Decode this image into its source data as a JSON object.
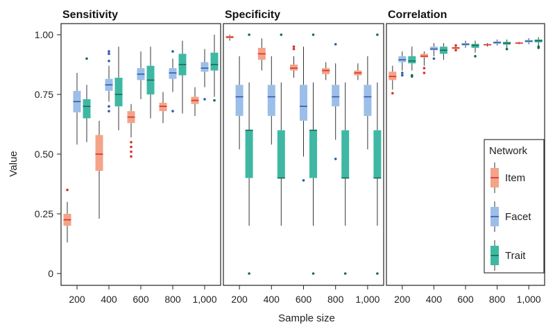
{
  "chart_data": {
    "type": "boxplot",
    "ylabel": "Value",
    "xlabel": "Sample size",
    "categories": [
      "200",
      "400",
      "600",
      "800",
      "1,000"
    ],
    "ylim": [
      0,
      1
    ],
    "yticks": [
      {
        "v": 1.0,
        "label": "1.00"
      },
      {
        "v": 0.75,
        "label": "0.75"
      },
      {
        "v": 0.5,
        "label": "0.50"
      },
      {
        "v": 0.25,
        "label": "0.25"
      },
      {
        "v": 0,
        "label": "0"
      }
    ],
    "legend": {
      "title": "Network",
      "placement": "right",
      "entries": [
        {
          "name": "Item",
          "color": "#f4a388",
          "median_color": "#d7302a"
        },
        {
          "name": "Facet",
          "color": "#9cbee8",
          "median_color": "#2a5db0"
        },
        {
          "name": "Trait",
          "color": "#3fb8a3",
          "median_color": "#146b57"
        }
      ]
    },
    "panels": [
      {
        "title": "Sensitivity",
        "series": [
          {
            "name": "Item",
            "boxes": [
              {
                "min": 0.13,
                "q1": 0.2,
                "median": 0.225,
                "q3": 0.25,
                "max": 0.3,
                "outliers": [
                  0.35
                ]
              },
              {
                "min": 0.23,
                "q1": 0.43,
                "median": 0.5,
                "q3": 0.58,
                "max": 0.64,
                "outliers": []
              },
              {
                "min": 0.57,
                "q1": 0.63,
                "median": 0.655,
                "q3": 0.68,
                "max": 0.71,
                "outliers": [
                  0.55,
                  0.53,
                  0.51,
                  0.49
                ]
              },
              {
                "min": 0.63,
                "q1": 0.68,
                "median": 0.7,
                "q3": 0.715,
                "max": 0.76,
                "outliers": []
              },
              {
                "min": 0.66,
                "q1": 0.71,
                "median": 0.725,
                "q3": 0.74,
                "max": 0.78,
                "outliers": []
              }
            ]
          },
          {
            "name": "Facet",
            "boxes": [
              {
                "min": 0.54,
                "q1": 0.675,
                "median": 0.72,
                "q3": 0.765,
                "max": 0.84,
                "outliers": []
              },
              {
                "min": 0.72,
                "q1": 0.765,
                "median": 0.79,
                "q3": 0.815,
                "max": 0.87,
                "outliers": [
                  0.93,
                  0.92,
                  0.89,
                  0.7,
                  0.68
                ]
              },
              {
                "min": 0.73,
                "q1": 0.81,
                "median": 0.835,
                "q3": 0.86,
                "max": 0.93,
                "outliers": []
              },
              {
                "min": 0.76,
                "q1": 0.815,
                "median": 0.84,
                "q3": 0.86,
                "max": 0.9,
                "outliers": [
                  0.93,
                  0.68
                ]
              },
              {
                "min": 0.78,
                "q1": 0.845,
                "median": 0.86,
                "q3": 0.885,
                "max": 0.94,
                "outliers": [
                  0.73
                ]
              }
            ]
          },
          {
            "name": "Trait",
            "boxes": [
              {
                "min": 0.55,
                "q1": 0.65,
                "median": 0.7,
                "q3": 0.73,
                "max": 0.79,
                "outliers": [
                  0.9
                ]
              },
              {
                "min": 0.6,
                "q1": 0.7,
                "median": 0.75,
                "q3": 0.82,
                "max": 0.95,
                "outliers": []
              },
              {
                "min": 0.65,
                "q1": 0.75,
                "median": 0.81,
                "q3": 0.87,
                "max": 0.95,
                "outliers": []
              },
              {
                "min": 0.67,
                "q1": 0.83,
                "median": 0.875,
                "q3": 0.92,
                "max": 0.975,
                "outliers": []
              },
              {
                "min": 0.74,
                "q1": 0.85,
                "median": 0.875,
                "q3": 0.925,
                "max": 1.0,
                "outliers": [
                  0.725
                ]
              }
            ]
          }
        ]
      },
      {
        "title": "Specificity",
        "series": [
          {
            "name": "Item",
            "boxes": [
              {
                "min": 0.975,
                "q1": 0.985,
                "median": 0.99,
                "q3": 0.995,
                "max": 1.0,
                "outliers": []
              },
              {
                "min": 0.85,
                "q1": 0.895,
                "median": 0.92,
                "q3": 0.945,
                "max": 0.985,
                "outliers": []
              },
              {
                "min": 0.82,
                "q1": 0.85,
                "median": 0.86,
                "q3": 0.875,
                "max": 0.91,
                "outliers": [
                  0.94,
                  0.95
                ]
              },
              {
                "min": 0.81,
                "q1": 0.835,
                "median": 0.85,
                "q3": 0.86,
                "max": 0.885,
                "outliers": []
              },
              {
                "min": 0.81,
                "q1": 0.83,
                "median": 0.84,
                "q3": 0.85,
                "max": 0.88,
                "outliers": []
              }
            ]
          },
          {
            "name": "Facet",
            "boxes": [
              {
                "min": 0.52,
                "q1": 0.66,
                "median": 0.74,
                "q3": 0.79,
                "max": 0.91,
                "outliers": []
              },
              {
                "min": 0.54,
                "q1": 0.66,
                "median": 0.74,
                "q3": 0.79,
                "max": 0.91,
                "outliers": []
              },
              {
                "min": 0.49,
                "q1": 0.64,
                "median": 0.7,
                "q3": 0.79,
                "max": 0.95,
                "outliers": [
                  0.39
                ]
              },
              {
                "min": 0.56,
                "q1": 0.7,
                "median": 0.74,
                "q3": 0.79,
                "max": 0.88,
                "outliers": [
                  0.96,
                  0.48
                ]
              },
              {
                "min": 0.52,
                "q1": 0.66,
                "median": 0.74,
                "q3": 0.79,
                "max": 0.91,
                "outliers": []
              }
            ]
          },
          {
            "name": "Trait",
            "boxes": [
              {
                "min": 0.2,
                "q1": 0.4,
                "median": 0.6,
                "q3": 0.6,
                "max": 0.8,
                "outliers": [
                  1.0,
                  0
                ]
              },
              {
                "min": 0.2,
                "q1": 0.4,
                "median": 0.4,
                "q3": 0.6,
                "max": 0.8,
                "outliers": [
                  1.0
                ]
              },
              {
                "min": 0.2,
                "q1": 0.4,
                "median": 0.6,
                "q3": 0.6,
                "max": 0.8,
                "outliers": [
                  1.0,
                  0
                ]
              },
              {
                "min": 0.2,
                "q1": 0.4,
                "median": 0.4,
                "q3": 0.6,
                "max": 0.8,
                "outliers": [
                  0
                ]
              },
              {
                "min": 0.2,
                "q1": 0.4,
                "median": 0.4,
                "q3": 0.6,
                "max": 0.8,
                "outliers": [
                  1.0,
                  0
                ]
              }
            ]
          }
        ]
      },
      {
        "title": "Correlation",
        "series": [
          {
            "name": "Item",
            "boxes": [
              {
                "min": 0.77,
                "q1": 0.81,
                "median": 0.825,
                "q3": 0.845,
                "max": 0.87,
                "outliers": [
                  0.755
                ]
              },
              {
                "min": 0.87,
                "q1": 0.905,
                "median": 0.91,
                "q3": 0.92,
                "max": 0.93,
                "outliers": [
                  0.86,
                  0.84
                ]
              },
              {
                "min": 0.935,
                "q1": 0.94,
                "median": 0.945,
                "q3": 0.948,
                "max": 0.955,
                "outliers": [
                  0.955,
                  0.935
                ]
              },
              {
                "min": 0.95,
                "q1": 0.955,
                "median": 0.958,
                "q3": 0.96,
                "max": 0.965,
                "outliers": []
              },
              {
                "min": 0.96,
                "q1": 0.963,
                "median": 0.965,
                "q3": 0.967,
                "max": 0.97,
                "outliers": []
              }
            ]
          },
          {
            "name": "Facet",
            "boxes": [
              {
                "min": 0.85,
                "q1": 0.885,
                "median": 0.895,
                "q3": 0.91,
                "max": 0.93,
                "outliers": [
                  0.84,
                  0.83
                ]
              },
              {
                "min": 0.91,
                "q1": 0.935,
                "median": 0.94,
                "q3": 0.95,
                "max": 0.965,
                "outliers": [
                  0.9
                ]
              },
              {
                "min": 0.945,
                "q1": 0.955,
                "median": 0.96,
                "q3": 0.965,
                "max": 0.975,
                "outliers": []
              },
              {
                "min": 0.955,
                "q1": 0.962,
                "median": 0.967,
                "q3": 0.972,
                "max": 0.98,
                "outliers": []
              },
              {
                "min": 0.96,
                "q1": 0.968,
                "median": 0.973,
                "q3": 0.978,
                "max": 0.985,
                "outliers": []
              }
            ]
          },
          {
            "name": "Trait",
            "boxes": [
              {
                "min": 0.85,
                "q1": 0.88,
                "median": 0.89,
                "q3": 0.91,
                "max": 0.95,
                "outliers": [
                  0.83,
                  0.825
                ]
              },
              {
                "min": 0.895,
                "q1": 0.92,
                "median": 0.935,
                "q3": 0.95,
                "max": 0.965,
                "outliers": []
              },
              {
                "min": 0.925,
                "q1": 0.945,
                "median": 0.955,
                "q3": 0.962,
                "max": 0.975,
                "outliers": [
                  0.91
                ]
              },
              {
                "min": 0.945,
                "q1": 0.958,
                "median": 0.965,
                "q3": 0.97,
                "max": 0.98,
                "outliers": [
                  0.94
                ]
              },
              {
                "min": 0.955,
                "q1": 0.968,
                "median": 0.975,
                "q3": 0.98,
                "max": 0.99,
                "outliers": [
                  0.95,
                  0.945
                ]
              }
            ]
          }
        ]
      }
    ]
  }
}
